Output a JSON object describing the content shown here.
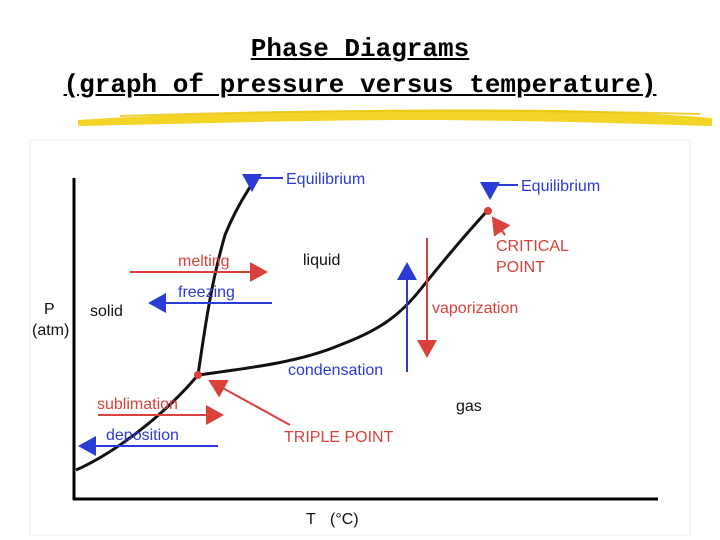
{
  "title": {
    "line1": "Phase Diagrams",
    "line2": "(graph of pressure versus temperature)"
  },
  "axes": {
    "y_label_1": "P",
    "y_label_2": "(atm)",
    "x_label_T": "T",
    "x_label_unit": "(°C)"
  },
  "regions": {
    "solid": "solid",
    "liquid": "liquid",
    "gas": "gas"
  },
  "labels": {
    "equilibrium_left": "Equilibrium",
    "equilibrium_right": "Equilibrium",
    "melting": "melting",
    "freezing": "freezing",
    "critical_point_1": "CRITICAL",
    "critical_point_2": "POINT",
    "vaporization": "vaporization",
    "condensation": "condensation",
    "sublimation": "sublimation",
    "deposition": "deposition",
    "triple_point": "TRIPLE POINT"
  },
  "colors": {
    "blue": "#2a3bd6",
    "red": "#d9413a",
    "curve": "#111111",
    "highlight": "#f2d21b"
  }
}
